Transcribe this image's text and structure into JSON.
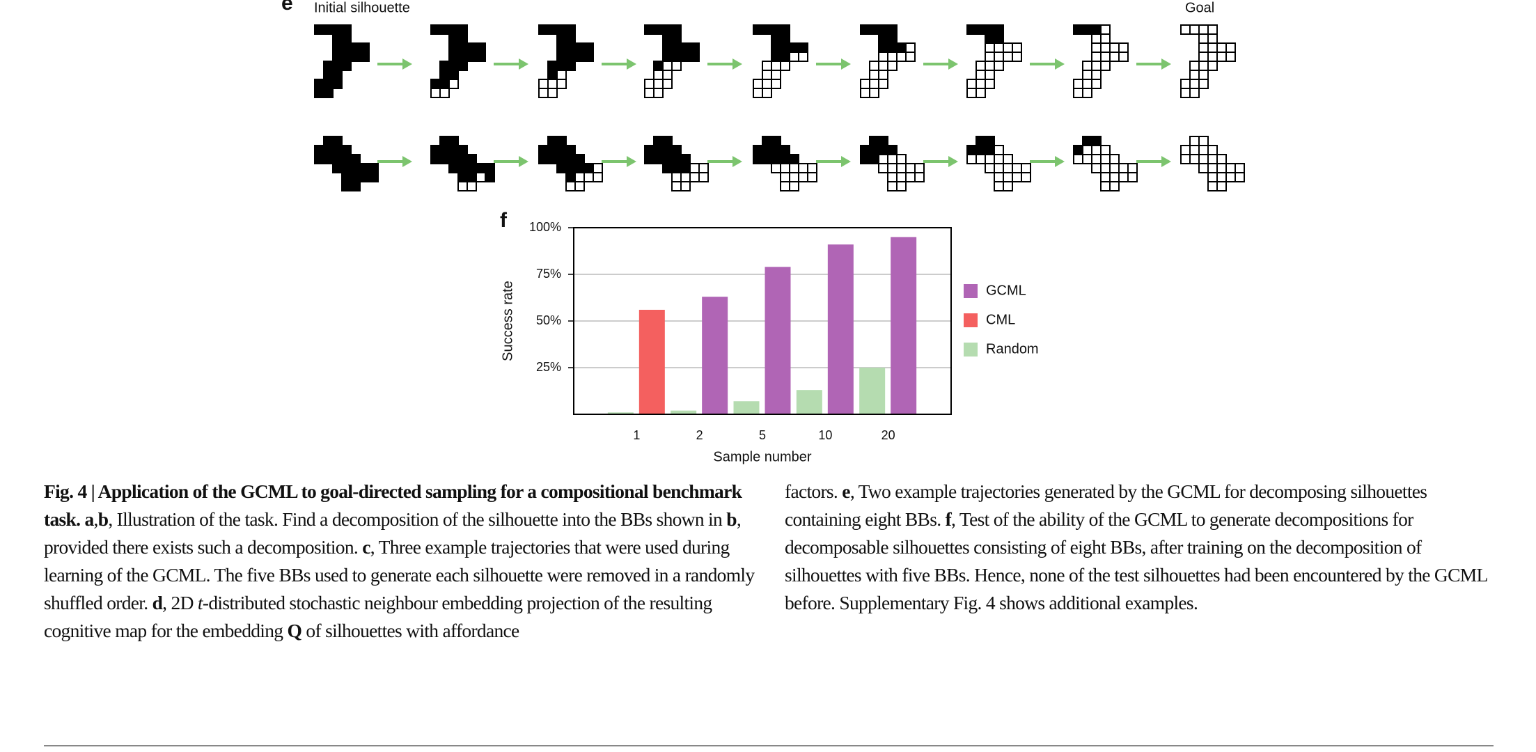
{
  "figure_e": {
    "label": "e",
    "start_label": "Initial silhouette",
    "goal_label": "Goal"
  },
  "chart_data": {
    "type": "bar",
    "panel_label": "f",
    "y_label": "Success rate",
    "x_label": "Sample number",
    "categories": [
      "1",
      "2",
      "5",
      "10",
      "20"
    ],
    "series": [
      {
        "name": "GCML",
        "color": "#b065b5",
        "values": [
          null,
          63,
          79,
          91,
          95
        ]
      },
      {
        "name": "CML",
        "color": "#f4605f",
        "values": [
          56,
          null,
          null,
          null,
          null
        ]
      },
      {
        "name": "Random",
        "color": "#b5dcb0",
        "values": [
          1,
          2,
          7,
          13,
          25
        ]
      }
    ],
    "ylim": [
      0,
      100
    ],
    "yticks": [
      {
        "value": 25,
        "label": "25%"
      },
      {
        "value": 50,
        "label": "50%"
      },
      {
        "value": 75,
        "label": "75%"
      },
      {
        "value": 100,
        "label": "100%"
      }
    ],
    "grid": true,
    "legend": "right"
  },
  "caption": {
    "left": [
      "Fig. 4 | Application of the GCML to goal-directed sampling for a compositional benchmark task.",
      "a",
      ",",
      "b",
      ", Illustration of the task. Find a decomposition of the silhouette into the BBs shown in",
      "b",
      ", provided there exists such a decomposition.",
      "c",
      ", Three example trajectories that were used during learning of the GCML. The five BBs used to generate each silhouette were removed in a randomly shuffled order.",
      "d",
      ", 2D",
      "t",
      "-distributed stochastic neighbour embedding projection of the resulting cognitive map for the embedding",
      "Q",
      "of silhouettes with affordance"
    ],
    "right": [
      "factors.",
      "e",
      ", Two example trajectories generated by the GCML for decomposing silhouettes containing eight BBs.",
      "f",
      ", Test of the ability of the GCML to generate decompositions for decomposable silhouettes consisting of eight BBs, after training on the decomposition of silhouettes with five BBs. Hence, none of the test silhouettes had been encountered by the GCML before. Supplementary Fig. 4 shows additional examples."
    ]
  }
}
